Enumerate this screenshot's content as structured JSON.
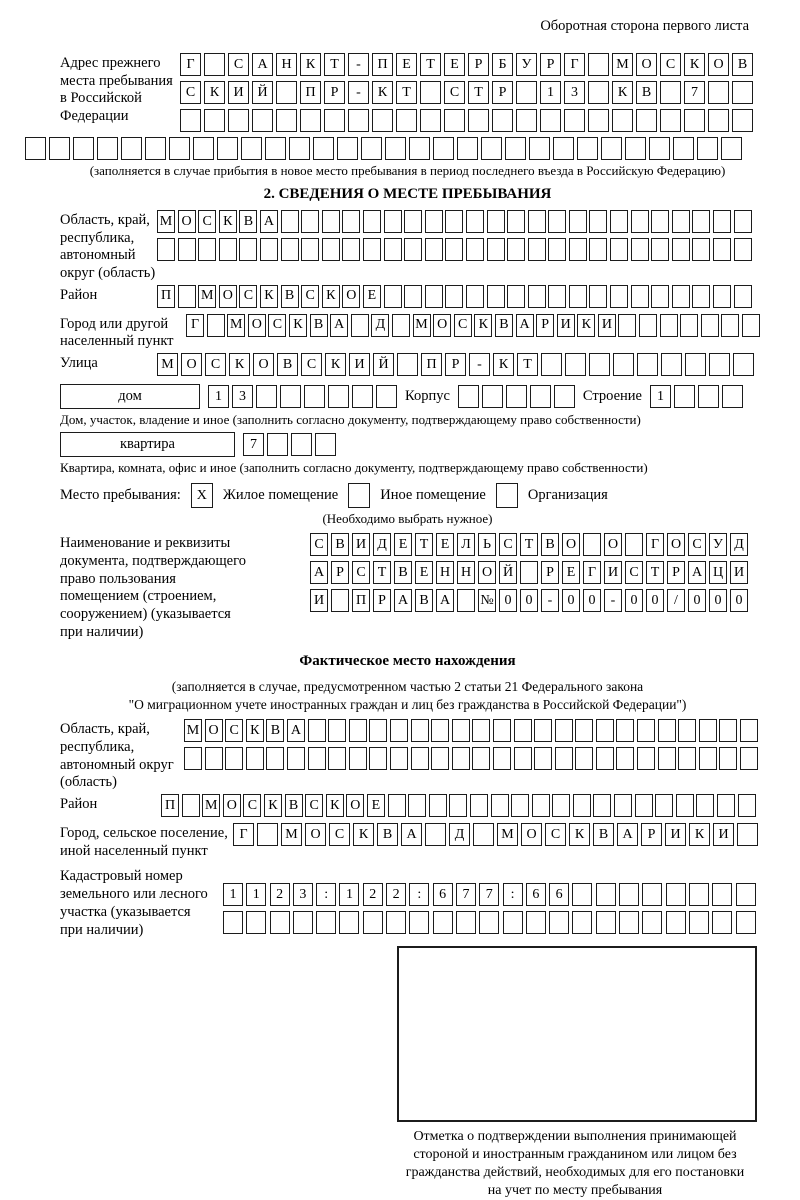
{
  "header_note": "Оборотная сторона первого листа",
  "prev_address": {
    "label_lines": [
      "Адрес прежнего",
      "места пребывания",
      "в Российской",
      "Федерации"
    ],
    "rows": [
      "Г САНКТ-ПЕТЕРБУРГ МОСКОВ",
      "СКИЙ ПР-КТ СТР 13 КВ 7  ",
      "                        "
    ],
    "row_full": "                              ",
    "caption": "(заполняется в случае прибытия в новое место пребывания в период последнего въезда в Российскую Федерацию)"
  },
  "section2": {
    "title": "2. СВЕДЕНИЯ О МЕСТЕ ПРЕБЫВАНИЯ",
    "oblast": {
      "label_lines": [
        "Область, край,",
        "республика,",
        "автономный",
        "округ (область)"
      ],
      "rows": [
        "МОСКВА                       ",
        "                             "
      ]
    },
    "rayon": {
      "label": "Район",
      "row": "П МОСКВСКОЕ                  "
    },
    "gorod": {
      "label_lines": [
        "Город или другой",
        "населенный пункт"
      ],
      "row": "Г МОСКВА Д МОСКВАРИКИ       "
    },
    "ulitsa": {
      "label": "Улица",
      "row": "МОСКОВСКИЙ ПР-КТ         "
    },
    "dom": {
      "box_label": "дом",
      "cells": "13      ",
      "korpus_label": "Корпус",
      "korpus_cells": "     ",
      "stroenie_label": "Строение",
      "stroenie_cells": "1   ",
      "caption": "Дом, участок, владение и иное (заполнить согласно документу, подтверждающему право собственности)"
    },
    "kvartira": {
      "box_label": "квартира",
      "cells": "7   ",
      "caption": "Квартира, комната, офис и иное (заполнить согласно документу, подтверждающему право собственности)"
    },
    "mesto": {
      "label": "Место пребывания:",
      "options": [
        {
          "mark": "X",
          "label": "Жилое помещение"
        },
        {
          "mark": "",
          "label": "Иное помещение"
        },
        {
          "mark": "",
          "label": "Организация"
        }
      ],
      "caption": "(Необходимо выбрать нужное)"
    },
    "document": {
      "label_lines": [
        "Наименование и реквизиты",
        "документа, подтверждающего",
        "право пользования",
        "помещением (строением,",
        "сооружением) (указывается",
        "при наличии)"
      ],
      "rows": [
        "СВИДЕТЕЛЬСТВО О ГОСУД",
        "АРСТВЕННОЙ РЕГИСТРАЦИ",
        "И ПРАВА №00-00-00/000"
      ]
    }
  },
  "fact": {
    "title": "Фактическое место нахождения",
    "caption_line1": "(заполняется в случае, предусмотренном частью 2 статьи 21 Федерального закона",
    "caption_line2": "\"О миграционном учете иностранных граждан и лиц без гражданства в Российской Федерации\")",
    "oblast": {
      "label_lines": [
        "Область, край,",
        "республика,",
        "автономный округ",
        "(область)"
      ],
      "rows": [
        "МОСКВА                      ",
        "                            "
      ]
    },
    "rayon": {
      "label": "Район",
      "row": "П МОСКВСКОЕ                  "
    },
    "gorod": {
      "label_lines": [
        "Город, сельское поселение,",
        "иной населенный пункт"
      ],
      "row": "Г МОСКВА Д МОСКВАРИКИ "
    },
    "kadastr": {
      "label_lines": [
        "Кадастровый номер",
        "земельного или лесного",
        "участка (указывается",
        "при наличии)"
      ],
      "rows": [
        "1123:122:677:66        ",
        "                       "
      ]
    }
  },
  "stamp": {
    "caption_lines": [
      "Отметка о подтверждении выполнения принимающей",
      "стороной и иностранным гражданином или лицом без",
      "гражданства действий, необходимых для его постановки",
      "на учет по месту пребывания"
    ]
  }
}
